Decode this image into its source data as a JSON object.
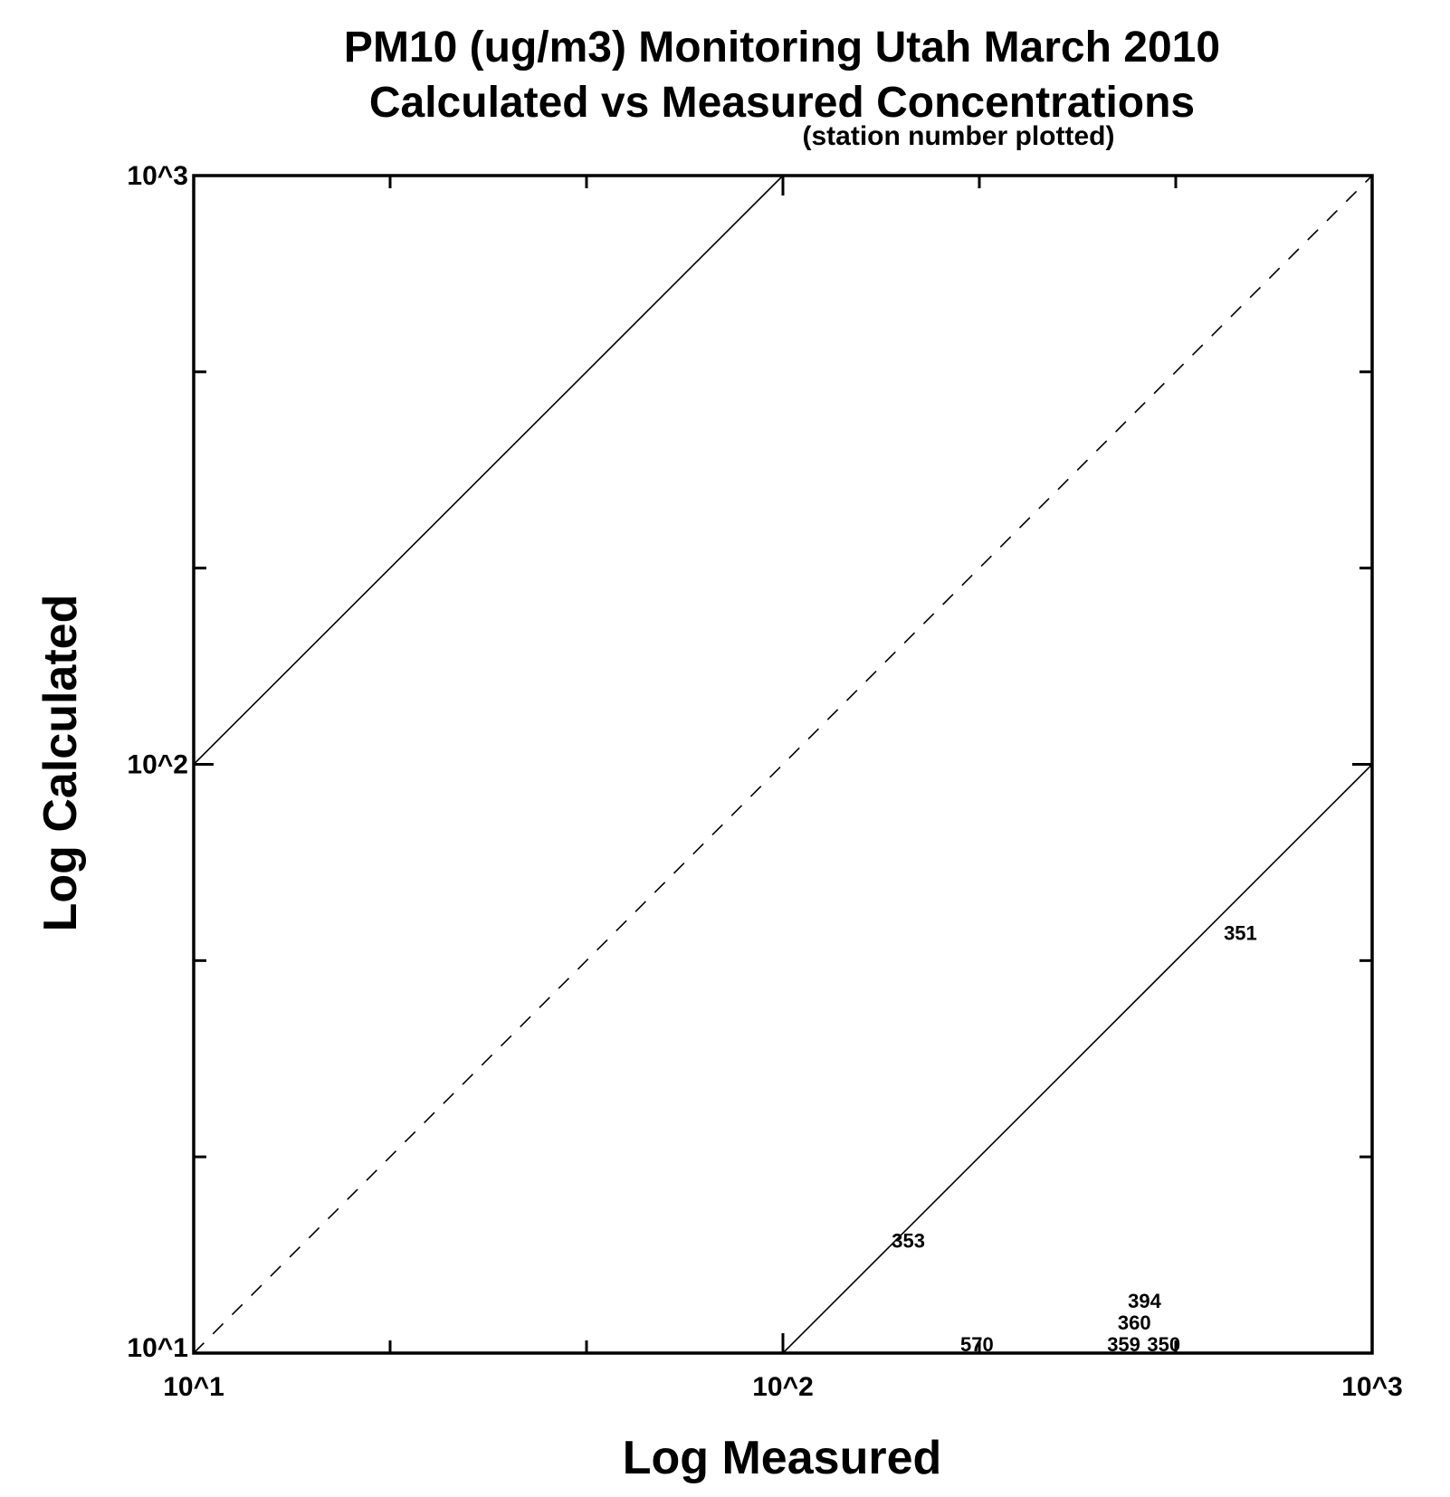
{
  "chart_data": {
    "type": "scatter",
    "title": "PM10 (ug/m3) Monitoring Utah March 2010",
    "subtitle": "Calculated vs Measured Concentrations",
    "note": "(station number plotted)",
    "xlabel": "Log Measured",
    "ylabel": "Log Calculated",
    "xscale": "log",
    "yscale": "log",
    "xlim": [
      10,
      1000
    ],
    "ylim": [
      10,
      1000
    ],
    "x_tick_labels": [
      "10^1",
      "10^2",
      "10^3"
    ],
    "y_tick_labels": [
      "10^1",
      "10^2",
      "10^3"
    ],
    "reference_lines": [
      {
        "name": "1:1",
        "factor": 1,
        "style": "dashed"
      },
      {
        "name": "factor 10 over",
        "factor": 10,
        "style": "solid"
      },
      {
        "name": "factor 10 under",
        "factor": 0.1,
        "style": "solid"
      }
    ],
    "points": [
      {
        "label": "351",
        "x": 560,
        "y": 50
      },
      {
        "label": "353",
        "x": 153,
        "y": 15
      },
      {
        "label": "570",
        "x": 200,
        "y": 10
      },
      {
        "label": "359",
        "x": 355,
        "y": 10
      },
      {
        "label": "360",
        "x": 370,
        "y": 10
      },
      {
        "label": "394",
        "x": 385,
        "y": 10
      },
      {
        "label": "350",
        "x": 415,
        "y": 10
      }
    ]
  }
}
